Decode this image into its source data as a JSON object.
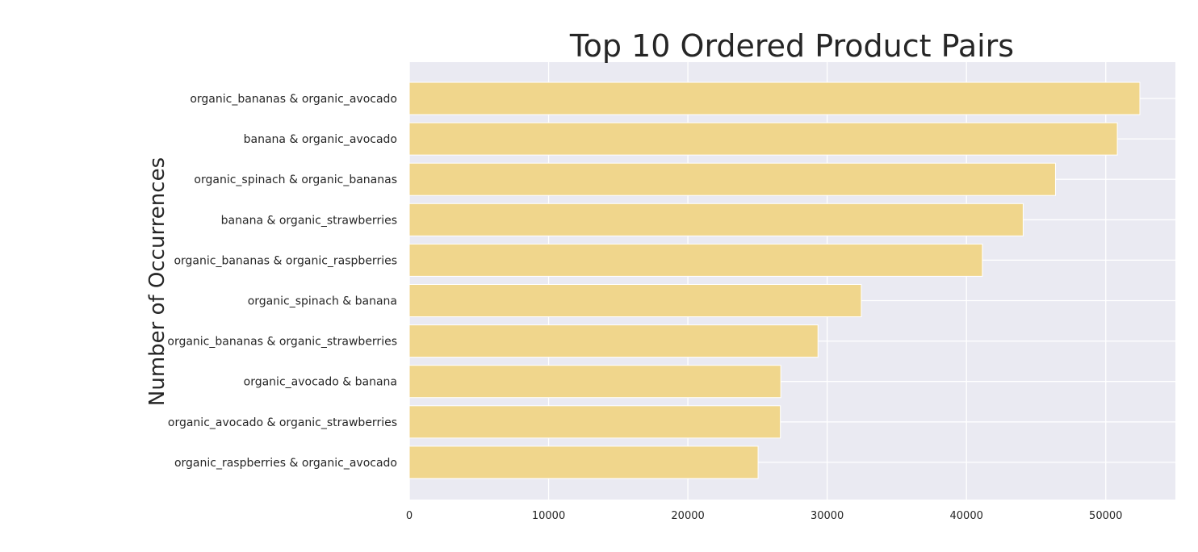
{
  "chart_data": {
    "type": "bar",
    "orientation": "horizontal",
    "title": "Top 10 Ordered Product Pairs",
    "ylabel": "Number of Occurrences",
    "xlabel": "",
    "categories": [
      "organic_bananas & organic_avocado",
      "banana & organic_avocado",
      "organic_spinach & organic_bananas",
      "banana & organic_strawberries",
      "organic_bananas & organic_raspberries",
      "organic_spinach & banana",
      "organic_bananas & organic_strawberries",
      "organic_avocado & banana",
      "organic_avocado & organic_strawberries",
      "organic_raspberries & organic_avocado"
    ],
    "values": [
      52450,
      50830,
      46390,
      44070,
      41140,
      32450,
      29340,
      26670,
      26640,
      25040
    ],
    "xlim": [
      0,
      55000
    ],
    "xticks": [
      0,
      10000,
      20000,
      30000,
      40000,
      50000
    ],
    "xtick_labels": [
      "0",
      "10000",
      "20000",
      "30000",
      "40000",
      "50000"
    ],
    "grid": true,
    "colors": {
      "bar": "#f0d68c",
      "bar_edge": "#ffffff",
      "plot_background": "#eaeaf2",
      "grid": "#ffffff",
      "text": "#262626"
    }
  }
}
